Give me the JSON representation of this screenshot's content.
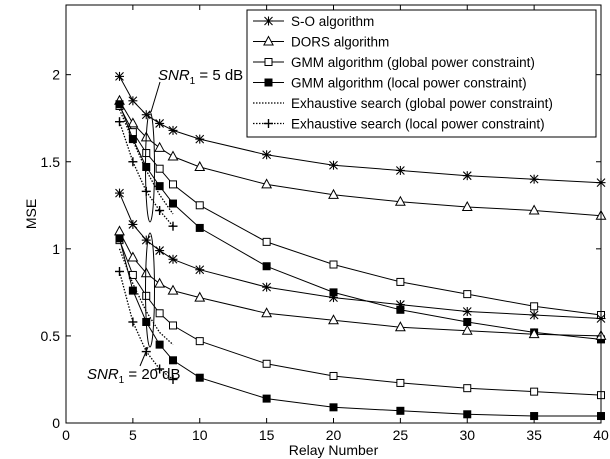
{
  "chart_data": {
    "type": "line",
    "xlabel": "Relay Number",
    "ylabel": "MSE",
    "xlim": [
      0,
      40
    ],
    "ylim": [
      0,
      2.4
    ],
    "xticks": [
      0,
      5,
      10,
      15,
      20,
      25,
      30,
      35,
      40
    ],
    "yticks": [
      0,
      0.5,
      1,
      1.5,
      2
    ],
    "ytick_labels": [
      "0",
      "0.5",
      "1",
      "1.5",
      "2"
    ],
    "grid": false,
    "legend_position": "top-right",
    "legend": [
      {
        "label": "S-O algorithm",
        "marker": "asterisk",
        "dash": "solid"
      },
      {
        "label": "DORS algorithm",
        "marker": "triangle",
        "dash": "solid"
      },
      {
        "label": "GMM algorithm (global power constraint)",
        "marker": "square-open",
        "dash": "solid"
      },
      {
        "label": "GMM algorithm (local power constraint)",
        "marker": "square-filled",
        "dash": "solid"
      },
      {
        "label": "Exhaustive search (global power constraint)",
        "marker": "none",
        "dash": "dotted"
      },
      {
        "label": "Exhaustive search (local power constraint)",
        "marker": "plus",
        "dash": "dotted"
      }
    ],
    "annotations": [
      {
        "base": "SNR",
        "sub": "1",
        "rest": " = 5 dB"
      },
      {
        "base": "SNR",
        "sub": "1",
        "rest": " = 20 dB"
      }
    ],
    "series": [
      {
        "group": "5dB",
        "marker": "asterisk",
        "dash": "solid",
        "x": [
          4,
          5,
          6,
          7,
          8,
          10,
          15,
          20,
          25,
          30,
          35,
          40
        ],
        "y": [
          1.99,
          1.85,
          1.77,
          1.72,
          1.68,
          1.63,
          1.54,
          1.48,
          1.45,
          1.42,
          1.4,
          1.38
        ]
      },
      {
        "group": "5dB",
        "marker": "triangle",
        "dash": "solid",
        "x": [
          4,
          5,
          6,
          7,
          8,
          10,
          15,
          20,
          25,
          30,
          35,
          40
        ],
        "y": [
          1.85,
          1.72,
          1.64,
          1.58,
          1.53,
          1.47,
          1.37,
          1.31,
          1.27,
          1.24,
          1.22,
          1.19
        ]
      },
      {
        "group": "5dB",
        "marker": "square-open",
        "dash": "solid",
        "x": [
          4,
          5,
          6,
          7,
          8,
          10,
          15,
          20,
          25,
          30,
          35,
          40
        ],
        "y": [
          1.82,
          1.67,
          1.55,
          1.46,
          1.37,
          1.25,
          1.04,
          0.91,
          0.81,
          0.74,
          0.67,
          0.62
        ]
      },
      {
        "group": "5dB",
        "marker": "square-filled",
        "dash": "solid",
        "x": [
          4,
          5,
          6,
          7,
          8,
          10,
          15,
          20,
          25,
          30,
          35,
          40
        ],
        "y": [
          1.83,
          1.63,
          1.47,
          1.36,
          1.26,
          1.12,
          0.9,
          0.75,
          0.65,
          0.58,
          0.52,
          0.48
        ]
      },
      {
        "group": "5dB",
        "marker": "none",
        "dash": "dotted",
        "x": [
          4,
          5,
          6,
          7,
          8
        ],
        "y": [
          1.8,
          1.62,
          1.45,
          1.31,
          1.2
        ]
      },
      {
        "group": "5dB",
        "marker": "plus",
        "dash": "dotted",
        "x": [
          4,
          5,
          6,
          7,
          8
        ],
        "y": [
          1.73,
          1.5,
          1.33,
          1.22,
          1.13
        ]
      },
      {
        "group": "20dB",
        "marker": "asterisk",
        "dash": "solid",
        "x": [
          4,
          5,
          6,
          7,
          8,
          10,
          15,
          20,
          25,
          30,
          35,
          40
        ],
        "y": [
          1.32,
          1.14,
          1.05,
          0.99,
          0.94,
          0.88,
          0.78,
          0.72,
          0.68,
          0.64,
          0.62,
          0.6
        ]
      },
      {
        "group": "20dB",
        "marker": "triangle",
        "dash": "solid",
        "x": [
          4,
          5,
          6,
          7,
          8,
          10,
          15,
          20,
          25,
          30,
          35,
          40
        ],
        "y": [
          1.1,
          0.95,
          0.86,
          0.8,
          0.76,
          0.72,
          0.63,
          0.59,
          0.55,
          0.53,
          0.51,
          0.5
        ]
      },
      {
        "group": "20dB",
        "marker": "square-open",
        "dash": "solid",
        "x": [
          4,
          5,
          6,
          7,
          8,
          10,
          15,
          20,
          25,
          30,
          35,
          40
        ],
        "y": [
          1.05,
          0.85,
          0.73,
          0.63,
          0.56,
          0.47,
          0.34,
          0.27,
          0.23,
          0.2,
          0.18,
          0.16
        ]
      },
      {
        "group": "20dB",
        "marker": "square-filled",
        "dash": "solid",
        "x": [
          4,
          5,
          6,
          7,
          8,
          10,
          15,
          20,
          25,
          30,
          35,
          40
        ],
        "y": [
          1.06,
          0.76,
          0.58,
          0.45,
          0.36,
          0.26,
          0.14,
          0.09,
          0.07,
          0.05,
          0.04,
          0.04
        ]
      },
      {
        "group": "20dB",
        "marker": "none",
        "dash": "dotted",
        "x": [
          4,
          5,
          6,
          7,
          8
        ],
        "y": [
          1.0,
          0.8,
          0.64,
          0.52,
          0.45
        ]
      },
      {
        "group": "20dB",
        "marker": "plus",
        "dash": "dotted",
        "x": [
          4,
          5,
          6,
          7,
          8
        ],
        "y": [
          0.87,
          0.58,
          0.41,
          0.31,
          0.25
        ]
      }
    ]
  }
}
